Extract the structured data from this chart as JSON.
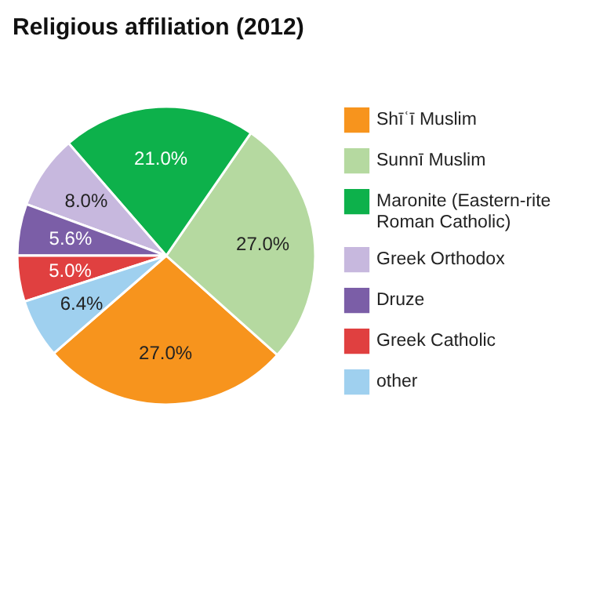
{
  "chart_data": {
    "type": "pie",
    "title": "Religious affiliation (2012)",
    "categories": [
      "Shīʿī Muslim",
      "Sunnī Muslim",
      "Maronite (Eastern-rite Roman Catholic)",
      "Greek Orthodox",
      "Druze",
      "Greek Catholic",
      "other"
    ],
    "values": [
      27.0,
      27.0,
      21.0,
      8.0,
      5.6,
      5.0,
      6.4
    ],
    "value_labels": [
      "27.0%",
      "27.0%",
      "21.0%",
      "8.0%",
      "5.6%",
      "5.0%",
      "6.4%"
    ],
    "colors": [
      "#f7941d",
      "#b5d9a0",
      "#0db14b",
      "#c7b8de",
      "#7b5ea7",
      "#e04040",
      "#9fd0ef"
    ],
    "legend": "right"
  }
}
